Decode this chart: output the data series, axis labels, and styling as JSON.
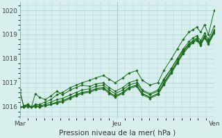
{
  "xlabel": "Pression niveau de la mer( hPa )",
  "bg_color": "#d8efee",
  "grid_color": "#aacfcf",
  "line_color": "#1a6b1a",
  "marker_color": "#1a6b1a",
  "ylim": [
    1015.55,
    1020.35
  ],
  "yticks": [
    1016,
    1017,
    1018,
    1019,
    1020
  ],
  "day_labels": [
    "Mar",
    "Jeu",
    "Ven"
  ],
  "day_positions": [
    0,
    0.5,
    1.0
  ],
  "series": [
    {
      "x": [
        0.0,
        0.02,
        0.04,
        0.06,
        0.08,
        0.1,
        0.13,
        0.16,
        0.19,
        0.22,
        0.26,
        0.29,
        0.32,
        0.36,
        0.39,
        0.43,
        0.46,
        0.49,
        0.53,
        0.56,
        0.6,
        0.63,
        0.67,
        0.71,
        0.74,
        0.78,
        0.81,
        0.84,
        0.87,
        0.89,
        0.91,
        0.93,
        0.95,
        0.97,
        1.0
      ],
      "y": [
        1016.7,
        1016.0,
        1016.1,
        1016.0,
        1016.1,
        1016.1,
        1016.2,
        1016.3,
        1016.5,
        1016.6,
        1016.8,
        1016.9,
        1017.0,
        1017.1,
        1017.2,
        1017.3,
        1017.15,
        1017.0,
        1017.2,
        1017.4,
        1017.5,
        1017.1,
        1016.9,
        1017.0,
        1017.5,
        1018.0,
        1018.4,
        1018.8,
        1019.1,
        1019.2,
        1019.3,
        1019.1,
        1019.4,
        1019.0,
        1020.0
      ]
    },
    {
      "x": [
        0.0,
        0.02,
        0.04,
        0.06,
        0.08,
        0.1,
        0.13,
        0.16,
        0.19,
        0.22,
        0.26,
        0.29,
        0.32,
        0.36,
        0.39,
        0.43,
        0.46,
        0.49,
        0.53,
        0.56,
        0.6,
        0.63,
        0.67,
        0.71,
        0.74,
        0.78,
        0.81,
        0.84,
        0.87,
        0.89,
        0.91,
        0.93,
        0.95,
        0.97,
        1.0
      ],
      "y": [
        1016.0,
        1016.0,
        1016.05,
        1016.0,
        1016.05,
        1016.05,
        1016.1,
        1016.2,
        1016.3,
        1016.35,
        1016.5,
        1016.6,
        1016.7,
        1016.75,
        1016.85,
        1016.9,
        1016.7,
        1016.55,
        1016.7,
        1016.9,
        1017.0,
        1016.65,
        1016.5,
        1016.65,
        1017.1,
        1017.6,
        1018.0,
        1018.4,
        1018.7,
        1018.85,
        1018.95,
        1018.75,
        1019.05,
        1018.8,
        1019.35
      ]
    },
    {
      "x": [
        0.0,
        0.02,
        0.04,
        0.06,
        0.08,
        0.1,
        0.13,
        0.16,
        0.19,
        0.22,
        0.26,
        0.29,
        0.32,
        0.36,
        0.39,
        0.43,
        0.46,
        0.49,
        0.53,
        0.56,
        0.6,
        0.63,
        0.67,
        0.71,
        0.74,
        0.78,
        0.81,
        0.84,
        0.87,
        0.89,
        0.91,
        0.93,
        0.95,
        0.97,
        1.0
      ],
      "y": [
        1016.0,
        1016.0,
        1016.05,
        1016.0,
        1016.05,
        1016.0,
        1016.05,
        1016.1,
        1016.2,
        1016.25,
        1016.4,
        1016.5,
        1016.6,
        1016.65,
        1016.75,
        1016.8,
        1016.6,
        1016.45,
        1016.6,
        1016.8,
        1016.9,
        1016.55,
        1016.4,
        1016.55,
        1017.0,
        1017.5,
        1017.9,
        1018.3,
        1018.6,
        1018.75,
        1018.85,
        1018.65,
        1018.95,
        1018.7,
        1019.2
      ]
    },
    {
      "x": [
        0.0,
        0.02,
        0.04,
        0.06,
        0.08,
        0.1,
        0.13,
        0.16,
        0.19,
        0.22,
        0.26,
        0.29,
        0.32,
        0.36,
        0.39,
        0.43,
        0.46,
        0.49,
        0.53,
        0.56,
        0.6,
        0.63,
        0.67,
        0.71,
        0.74,
        0.78,
        0.81,
        0.84,
        0.87,
        0.89,
        0.91,
        0.93,
        0.95,
        0.97,
        1.0
      ],
      "y": [
        1016.6,
        1016.05,
        1016.1,
        1016.0,
        1016.55,
        1016.4,
        1016.3,
        1016.45,
        1016.65,
        1016.5,
        1016.7,
        1016.8,
        1016.9,
        1016.85,
        1016.95,
        1017.0,
        1016.8,
        1016.65,
        1016.8,
        1017.0,
        1017.1,
        1016.7,
        1016.55,
        1016.7,
        1017.15,
        1017.6,
        1018.0,
        1018.35,
        1018.6,
        1018.7,
        1018.8,
        1018.6,
        1018.9,
        1018.65,
        1019.1
      ]
    },
    {
      "x": [
        0.0,
        0.02,
        0.04,
        0.06,
        0.08,
        0.1,
        0.13,
        0.16,
        0.19,
        0.22,
        0.26,
        0.29,
        0.32,
        0.36,
        0.39,
        0.43,
        0.46,
        0.49,
        0.53,
        0.56,
        0.6,
        0.63,
        0.67,
        0.71,
        0.74,
        0.78,
        0.81,
        0.84,
        0.87,
        0.89,
        0.91,
        0.93,
        0.95,
        0.97,
        1.0
      ],
      "y": [
        1016.0,
        1016.0,
        1016.05,
        1016.0,
        1016.05,
        1016.0,
        1016.05,
        1016.1,
        1016.2,
        1016.25,
        1016.4,
        1016.5,
        1016.6,
        1016.65,
        1016.75,
        1016.8,
        1016.6,
        1016.45,
        1016.6,
        1016.8,
        1016.9,
        1016.55,
        1016.4,
        1016.55,
        1016.95,
        1017.45,
        1017.85,
        1018.25,
        1018.55,
        1018.7,
        1018.8,
        1018.6,
        1018.9,
        1018.65,
        1019.15
      ]
    },
    {
      "x": [
        0.0,
        0.02,
        0.04,
        0.06,
        0.08,
        0.1,
        0.13,
        0.16,
        0.19,
        0.22,
        0.26,
        0.29,
        0.32,
        0.36,
        0.39,
        0.43,
        0.46,
        0.49,
        0.53,
        0.56,
        0.6,
        0.63,
        0.67,
        0.71,
        0.74,
        0.78,
        0.81,
        0.84,
        0.87,
        0.89,
        0.91,
        0.93,
        0.95,
        0.97,
        1.0
      ],
      "y": [
        1016.0,
        1016.0,
        1016.0,
        1016.0,
        1016.0,
        1016.0,
        1016.05,
        1016.1,
        1016.15,
        1016.2,
        1016.35,
        1016.45,
        1016.55,
        1016.6,
        1016.7,
        1016.75,
        1016.55,
        1016.4,
        1016.55,
        1016.75,
        1016.85,
        1016.5,
        1016.35,
        1016.5,
        1016.9,
        1017.4,
        1017.8,
        1018.2,
        1018.5,
        1018.65,
        1018.75,
        1018.55,
        1018.85,
        1018.6,
        1019.05
      ]
    }
  ]
}
